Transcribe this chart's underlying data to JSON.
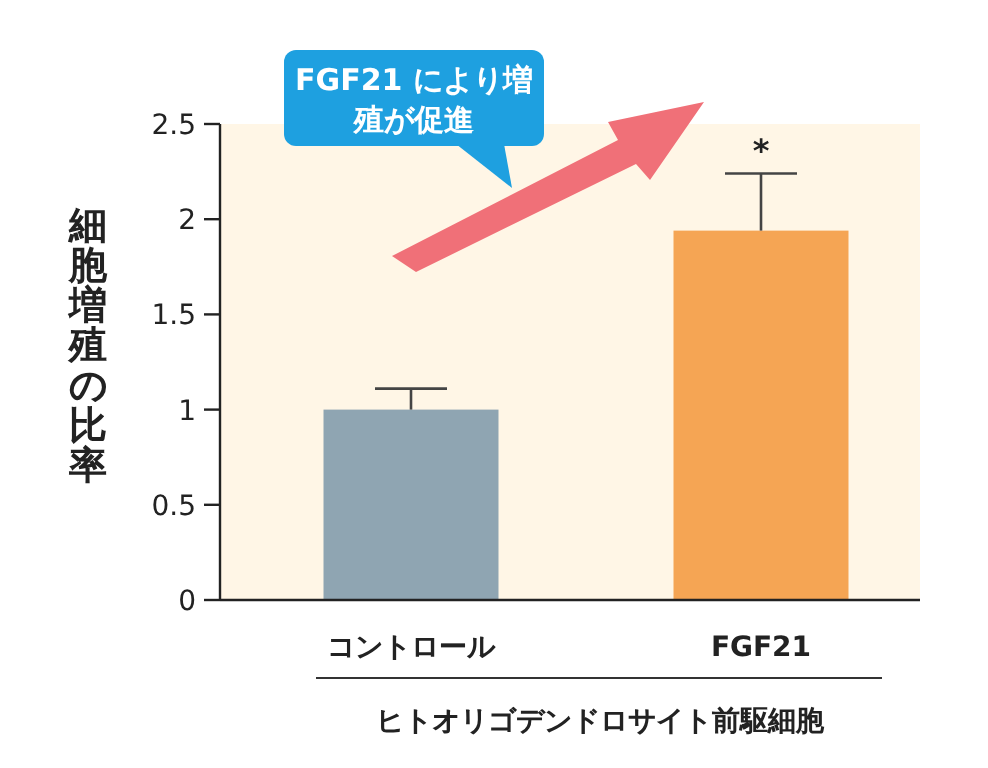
{
  "chart_data": {
    "type": "bar",
    "ylabel": "細胞増殖の比率",
    "xlabel": "ヒトオリゴデンドロサイト前駆細胞",
    "categories": [
      "コントロール",
      "FGF21"
    ],
    "values": [
      1.0,
      1.94
    ],
    "colors": [
      "#8fa5b2",
      "#f5a554"
    ],
    "errors": [
      [
        1.0,
        1.11
      ],
      [
        1.94,
        2.24
      ]
    ],
    "ylim": [
      0,
      2.5
    ],
    "yticks": [
      0,
      0.5,
      1,
      1.5,
      2,
      2.5
    ],
    "grid": false,
    "annotations": [
      {
        "text": "*",
        "x": "FGF21",
        "y": 2.24
      },
      "FGF21 により増殖が促進"
    ]
  }
}
